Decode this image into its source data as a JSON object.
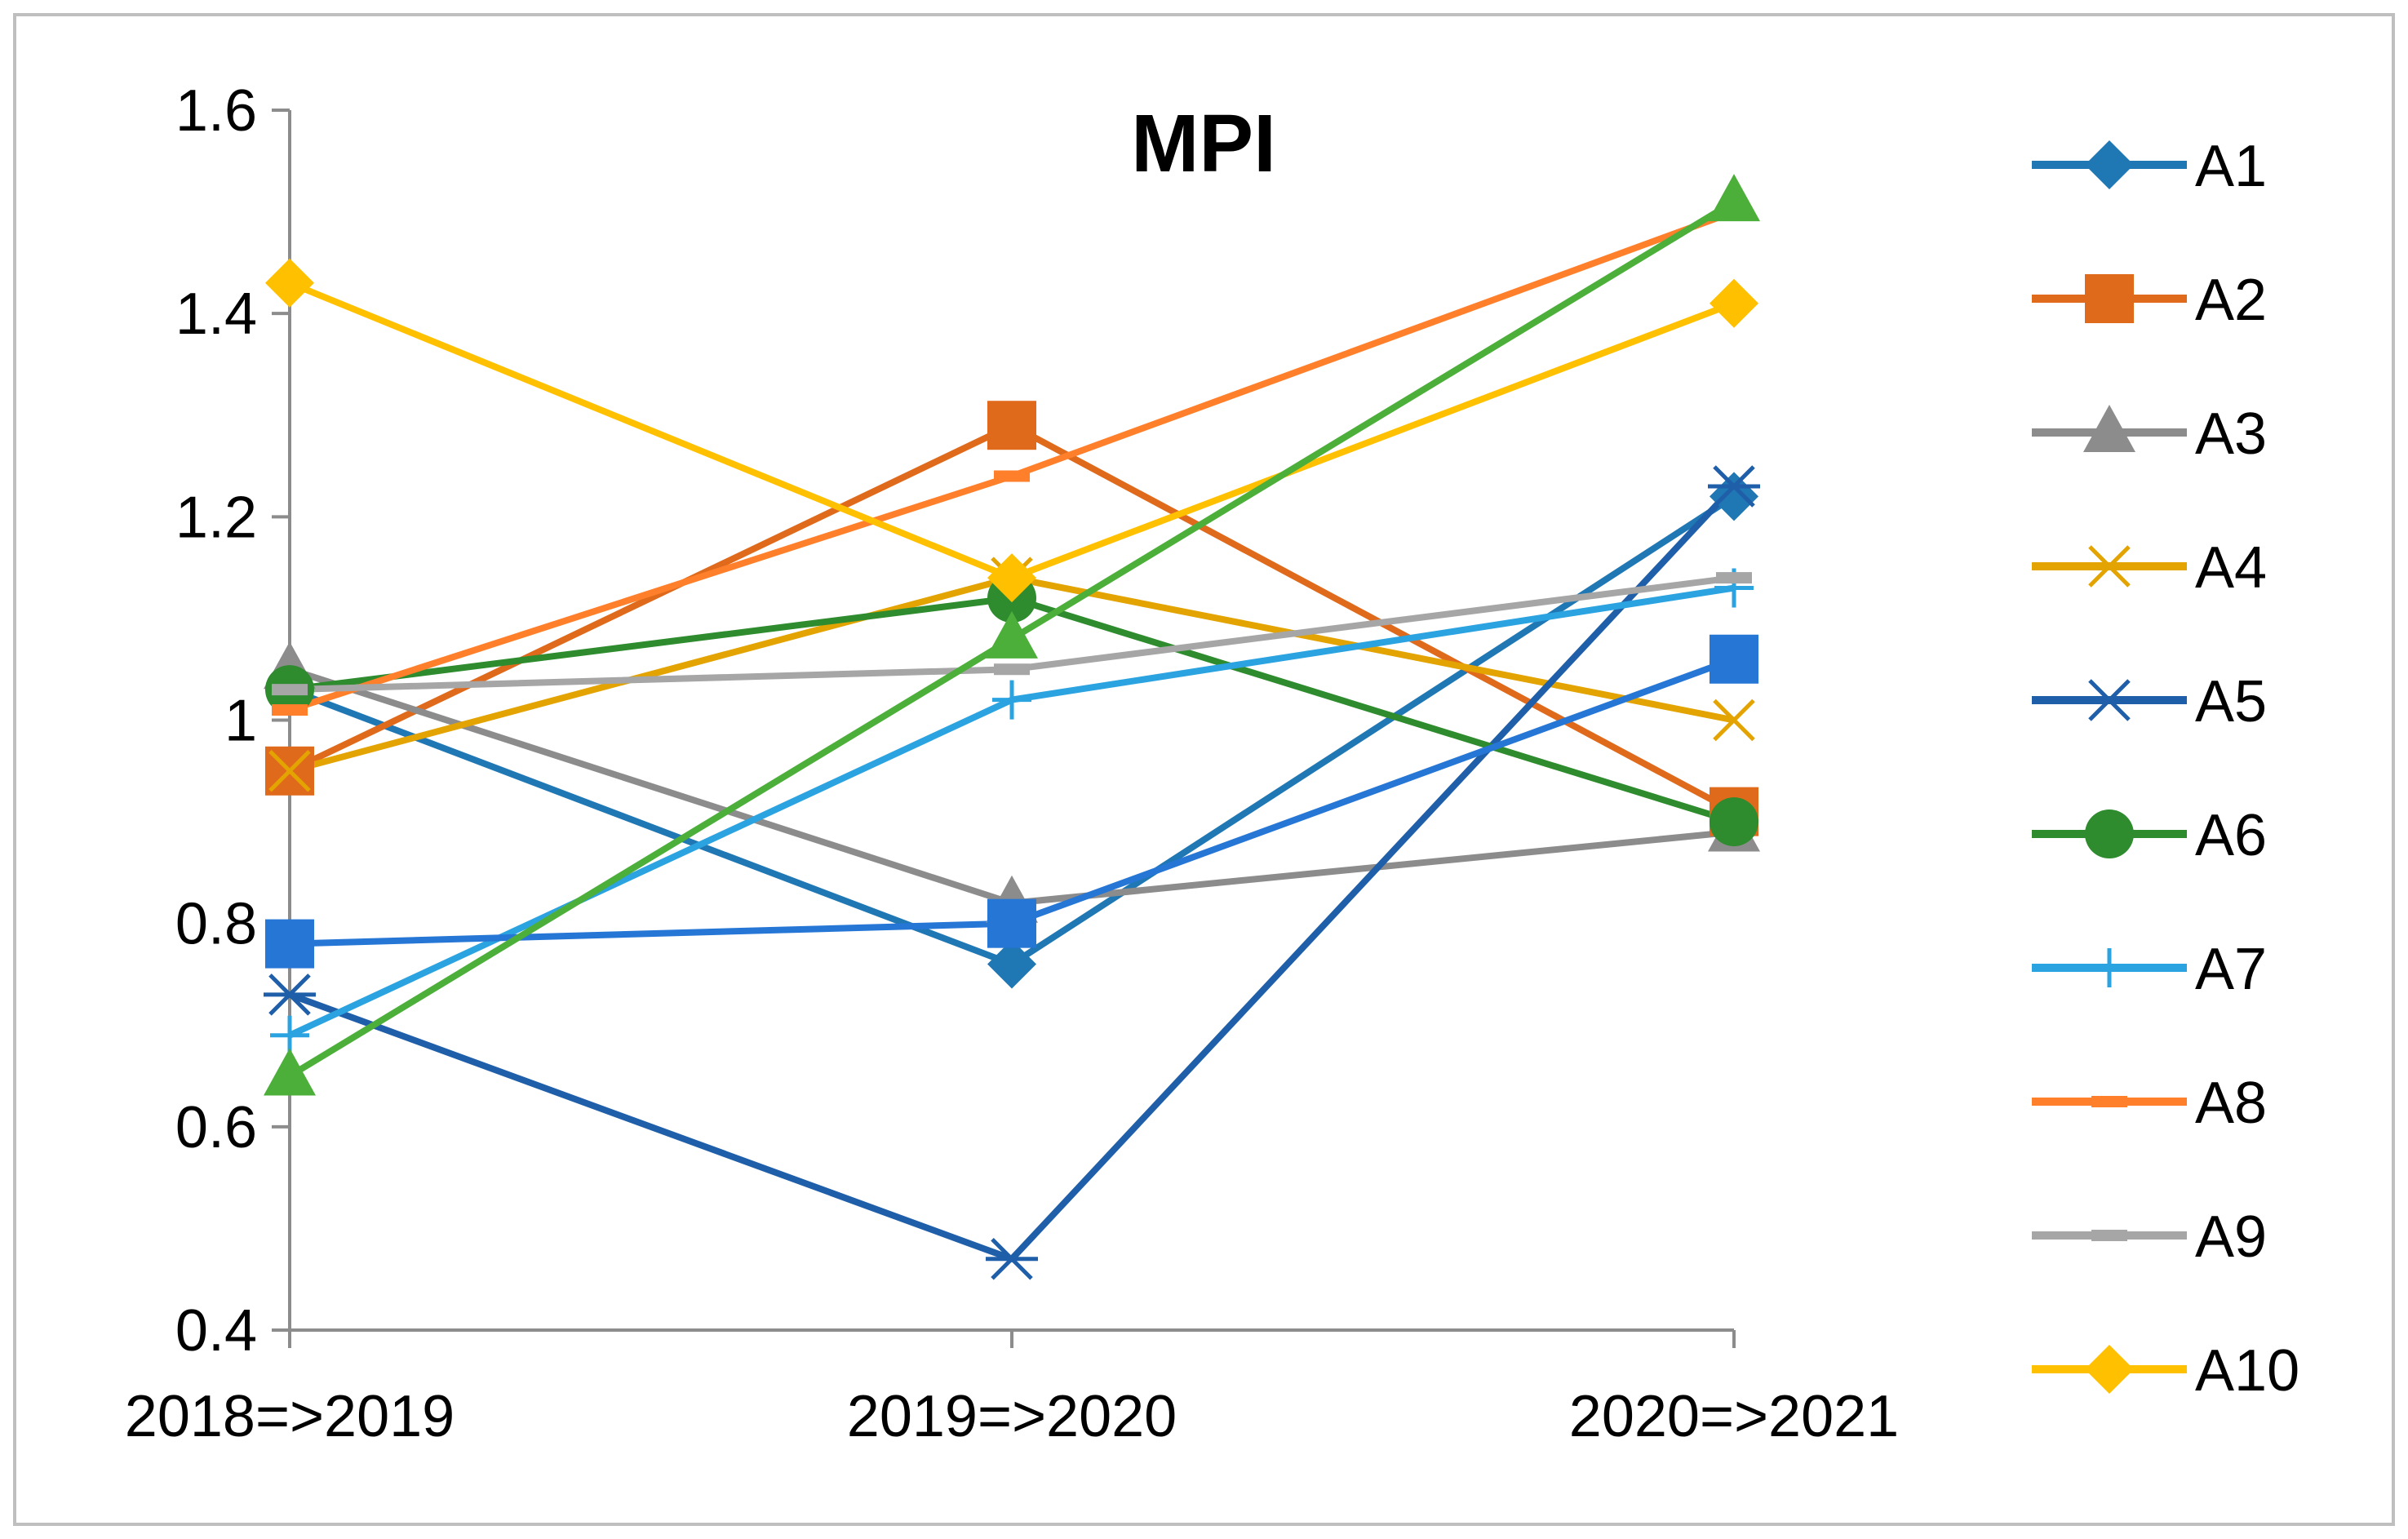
{
  "chart_data": {
    "type": "line",
    "title": "MPI",
    "xlabel": "",
    "ylabel": "",
    "categories": [
      "2018=>2019",
      "2019=>2020",
      "2020=>2021"
    ],
    "ylim": [
      0.4,
      1.6
    ],
    "yticks": [
      0.4,
      0.6,
      0.8,
      1,
      1.2,
      1.4,
      1.6
    ],
    "ytick_labels": [
      "0.4",
      "0.6",
      "0.8",
      "1",
      "1.2",
      "1.4",
      "1.6"
    ],
    "grid": false,
    "legend": "right",
    "series": [
      {
        "name": "A1",
        "values": [
          1.03,
          0.76,
          1.22
        ],
        "color": "#1f77b4",
        "marker": "diamond"
      },
      {
        "name": "A2",
        "values": [
          0.95,
          1.29,
          0.91
        ],
        "color": "#e06a1c",
        "marker": "square"
      },
      {
        "name": "A3",
        "values": [
          1.05,
          0.82,
          0.89
        ],
        "color": "#8c8c8c",
        "marker": "triangle"
      },
      {
        "name": "A4",
        "values": [
          0.95,
          1.14,
          1.0
        ],
        "color": "#e3a300",
        "marker": "x"
      },
      {
        "name": "A5",
        "values": [
          0.73,
          0.47,
          1.23
        ],
        "color": "#1f5ea8",
        "marker": "star"
      },
      {
        "name": "A6",
        "values": [
          1.03,
          1.12,
          0.9
        ],
        "color": "#2e8b2e",
        "marker": "circle"
      },
      {
        "name": "A7",
        "values": [
          0.69,
          1.02,
          1.13
        ],
        "color": "#2ba3e0",
        "marker": "plus"
      },
      {
        "name": "A8",
        "values": [
          1.01,
          1.24,
          1.5
        ],
        "color": "#ff7f2a",
        "marker": "dash"
      },
      {
        "name": "A9",
        "values": [
          1.03,
          1.05,
          1.14
        ],
        "color": "#a6a6a6",
        "marker": "dash"
      },
      {
        "name": "A10",
        "values": [
          1.43,
          1.14,
          1.41
        ],
        "color": "#ffc000",
        "marker": "diamond"
      },
      {
        "name": "",
        "values": [
          0.78,
          0.8,
          1.06
        ],
        "color": "#2676d6",
        "marker": "square"
      },
      {
        "name": "",
        "values": [
          0.65,
          1.08,
          1.51
        ],
        "color": "#4caf3a",
        "marker": "triangle"
      }
    ]
  }
}
